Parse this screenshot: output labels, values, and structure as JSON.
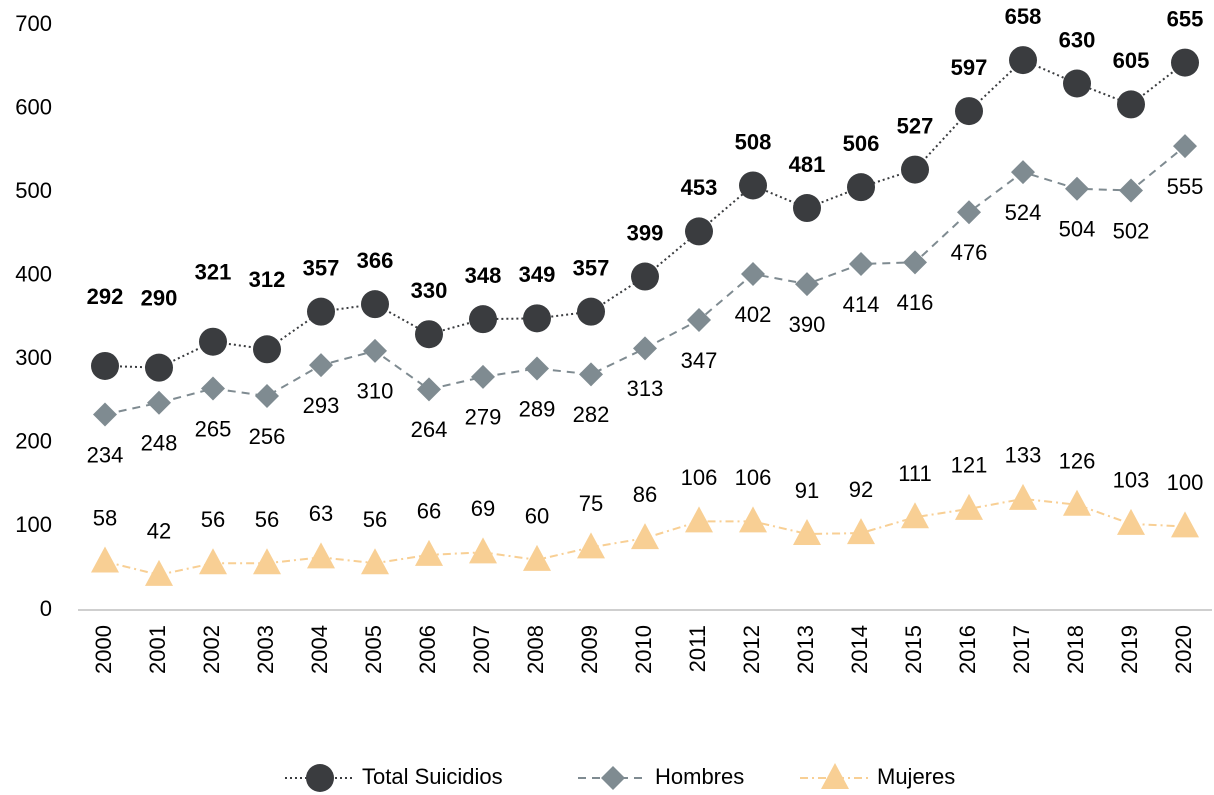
{
  "chart_data": {
    "type": "line",
    "categories": [
      "2000",
      "2001",
      "2002",
      "2003",
      "2004",
      "2005",
      "2006",
      "2007",
      "2008",
      "2009",
      "2010",
      "2011",
      "2012",
      "2013",
      "2014",
      "2015",
      "2016",
      "2017",
      "2018",
      "2019",
      "2020"
    ],
    "series": [
      {
        "name": "Total Suicidios",
        "color": "#3a3c3f",
        "values": [
          292,
          290,
          321,
          312,
          357,
          366,
          330,
          348,
          349,
          357,
          399,
          453,
          508,
          481,
          506,
          527,
          597,
          658,
          630,
          605,
          655
        ]
      },
      {
        "name": "Hombres",
        "color": "#7f8b91",
        "values": [
          234,
          248,
          265,
          256,
          293,
          310,
          264,
          279,
          289,
          282,
          313,
          347,
          402,
          390,
          414,
          416,
          476,
          524,
          504,
          502,
          555
        ]
      },
      {
        "name": "Mujeres",
        "color": "#f8cf94",
        "values": [
          58,
          42,
          56,
          56,
          63,
          56,
          66,
          69,
          60,
          75,
          86,
          106,
          106,
          91,
          92,
          111,
          121,
          133,
          126,
          103,
          100
        ]
      }
    ],
    "ylim": [
      0,
      700
    ],
    "yticks": [
      0,
      100,
      200,
      300,
      400,
      500,
      600,
      700
    ],
    "grid": false,
    "legend": "bottom"
  }
}
